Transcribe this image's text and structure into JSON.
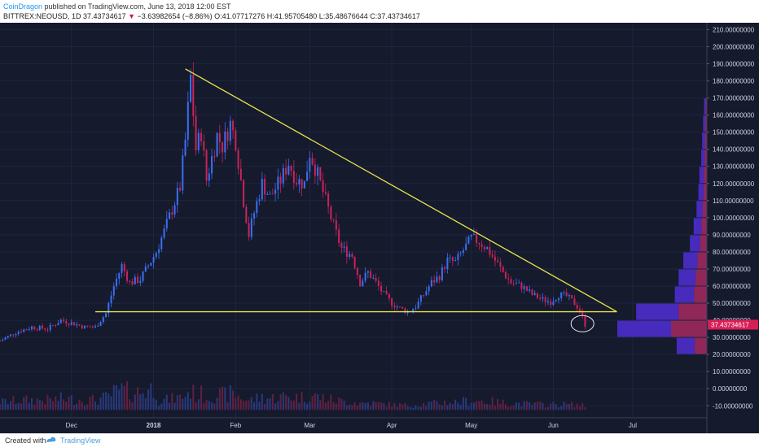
{
  "header": {
    "author": "CoinDragon",
    "published_text": "published on TradingView.com, June 13, 2018 12:00 EST",
    "symbol": "BITTREX:NEOUSD, 1D",
    "last": "37.43734617",
    "change": "−3.63982654 (−8.86%)",
    "ohlc": "O:41.07717276 H:41.95705480 L:35.48676644 C:37.43734617"
  },
  "footer": {
    "created_with": "Created with",
    "brand": "TradingView"
  },
  "colors": {
    "background": "#151a2d",
    "up": "#3a6ff2",
    "down": "#c8245a",
    "trendline": "#e8e64a",
    "volume_profile_up": "#4f2fd6",
    "volume_profile_down": "#a42b62",
    "price_tag": "#d81e55"
  },
  "chart_data": {
    "type": "candlestick",
    "symbol": "NEOUSD",
    "exchange": "BITTREX",
    "interval": "1D",
    "y_ticks": [
      "210.00000000",
      "200.00000000",
      "190.00000000",
      "180.00000000",
      "170.00000000",
      "160.00000000",
      "150.00000000",
      "140.00000000",
      "130.00000000",
      "120.00000000",
      "110.00000000",
      "100.00000000",
      "90.00000000",
      "80.00000000",
      "70.00000000",
      "60.00000000",
      "50.00000000",
      "40.00000000",
      "30.00000000",
      "20.00000000",
      "10.00000000",
      "0.00000000",
      "-10.00000000"
    ],
    "x_ticks": [
      {
        "label": "Dec",
        "date": "2017-12-01"
      },
      {
        "label": "2018",
        "date": "2018-01-01"
      },
      {
        "label": "Feb",
        "date": "2018-02-01"
      },
      {
        "label": "Mar",
        "date": "2018-03-01"
      },
      {
        "label": "Apr",
        "date": "2018-04-01"
      },
      {
        "label": "May",
        "date": "2018-05-01"
      },
      {
        "label": "Jun",
        "date": "2018-06-01"
      },
      {
        "label": "Jul",
        "date": "2018-07-01"
      }
    ],
    "ylim": [
      -17,
      214
    ],
    "xlim": [
      "2017-11-04",
      "2018-07-29"
    ],
    "last_price": "37.43734617",
    "close_path": [
      [
        "2017-11-04",
        28
      ],
      [
        "2017-11-10",
        33
      ],
      [
        "2017-11-16",
        36
      ],
      [
        "2017-11-22",
        35
      ],
      [
        "2017-11-27",
        40
      ],
      [
        "2017-12-02",
        38
      ],
      [
        "2017-12-06",
        36
      ],
      [
        "2017-12-10",
        36
      ],
      [
        "2017-12-14",
        44
      ],
      [
        "2017-12-17",
        60
      ],
      [
        "2017-12-20",
        72
      ],
      [
        "2017-12-23",
        62
      ],
      [
        "2017-12-27",
        64
      ],
      [
        "2017-12-30",
        72
      ],
      [
        "2018-01-02",
        80
      ],
      [
        "2018-01-05",
        92
      ],
      [
        "2018-01-08",
        105
      ],
      [
        "2018-01-11",
        118
      ],
      [
        "2018-01-13",
        145
      ],
      [
        "2018-01-15",
        182
      ],
      [
        "2018-01-17",
        140
      ],
      [
        "2018-01-19",
        150
      ],
      [
        "2018-01-21",
        122
      ],
      [
        "2018-01-23",
        135
      ],
      [
        "2018-01-25",
        148
      ],
      [
        "2018-01-27",
        142
      ],
      [
        "2018-01-30",
        155
      ],
      [
        "2018-02-01",
        145
      ],
      [
        "2018-02-04",
        110
      ],
      [
        "2018-02-06",
        90
      ],
      [
        "2018-02-08",
        103
      ],
      [
        "2018-02-11",
        120
      ],
      [
        "2018-02-14",
        112
      ],
      [
        "2018-02-18",
        122
      ],
      [
        "2018-02-21",
        132
      ],
      [
        "2018-02-24",
        122
      ],
      [
        "2018-02-27",
        120
      ],
      [
        "2018-03-01",
        138
      ],
      [
        "2018-03-04",
        125
      ],
      [
        "2018-03-07",
        110
      ],
      [
        "2018-03-10",
        95
      ],
      [
        "2018-03-13",
        82
      ],
      [
        "2018-03-17",
        78
      ],
      [
        "2018-03-20",
        62
      ],
      [
        "2018-03-23",
        68
      ],
      [
        "2018-03-26",
        62
      ],
      [
        "2018-03-29",
        55
      ],
      [
        "2018-04-01",
        50
      ],
      [
        "2018-04-04",
        47
      ],
      [
        "2018-04-07",
        45
      ],
      [
        "2018-04-10",
        48
      ],
      [
        "2018-04-13",
        55
      ],
      [
        "2018-04-16",
        62
      ],
      [
        "2018-04-19",
        66
      ],
      [
        "2018-04-22",
        75
      ],
      [
        "2018-04-25",
        74
      ],
      [
        "2018-04-28",
        81
      ],
      [
        "2018-05-01",
        88
      ],
      [
        "2018-05-04",
        86
      ],
      [
        "2018-05-07",
        82
      ],
      [
        "2018-05-10",
        75
      ],
      [
        "2018-05-13",
        68
      ],
      [
        "2018-05-16",
        62
      ],
      [
        "2018-05-20",
        60
      ],
      [
        "2018-05-24",
        55
      ],
      [
        "2018-05-28",
        52
      ],
      [
        "2018-05-31",
        51
      ],
      [
        "2018-06-03",
        55
      ],
      [
        "2018-06-06",
        54
      ],
      [
        "2018-06-09",
        50
      ],
      [
        "2018-06-11",
        46
      ],
      [
        "2018-06-13",
        37.43734617
      ]
    ],
    "trendline_upper": [
      [
        "2018-01-13",
        187
      ],
      [
        "2018-06-25",
        45
      ]
    ],
    "support_line": [
      [
        "2017-12-10",
        45
      ],
      [
        "2018-06-25",
        45
      ]
    ],
    "highlight_ellipse": {
      "date": "2018-06-12",
      "price": 38
    },
    "volume_profile": [
      {
        "price_from": 160,
        "price_to": 170,
        "volume": 3
      },
      {
        "price_from": 150,
        "price_to": 160,
        "volume": 4
      },
      {
        "price_from": 140,
        "price_to": 150,
        "volume": 5
      },
      {
        "price_from": 130,
        "price_to": 140,
        "volume": 6
      },
      {
        "price_from": 120,
        "price_to": 130,
        "volume": 8
      },
      {
        "price_from": 110,
        "price_to": 120,
        "volume": 9
      },
      {
        "price_from": 100,
        "price_to": 110,
        "volume": 11
      },
      {
        "price_from": 90,
        "price_to": 100,
        "volume": 14
      },
      {
        "price_from": 80,
        "price_to": 90,
        "volume": 18
      },
      {
        "price_from": 70,
        "price_to": 80,
        "volume": 25
      },
      {
        "price_from": 60,
        "price_to": 70,
        "volume": 30
      },
      {
        "price_from": 50,
        "price_to": 60,
        "volume": 34
      },
      {
        "price_from": 40,
        "price_to": 50,
        "volume": 75
      },
      {
        "price_from": 30,
        "price_to": 40,
        "volume": 95
      },
      {
        "price_from": 20,
        "price_to": 30,
        "volume": 32
      }
    ]
  }
}
